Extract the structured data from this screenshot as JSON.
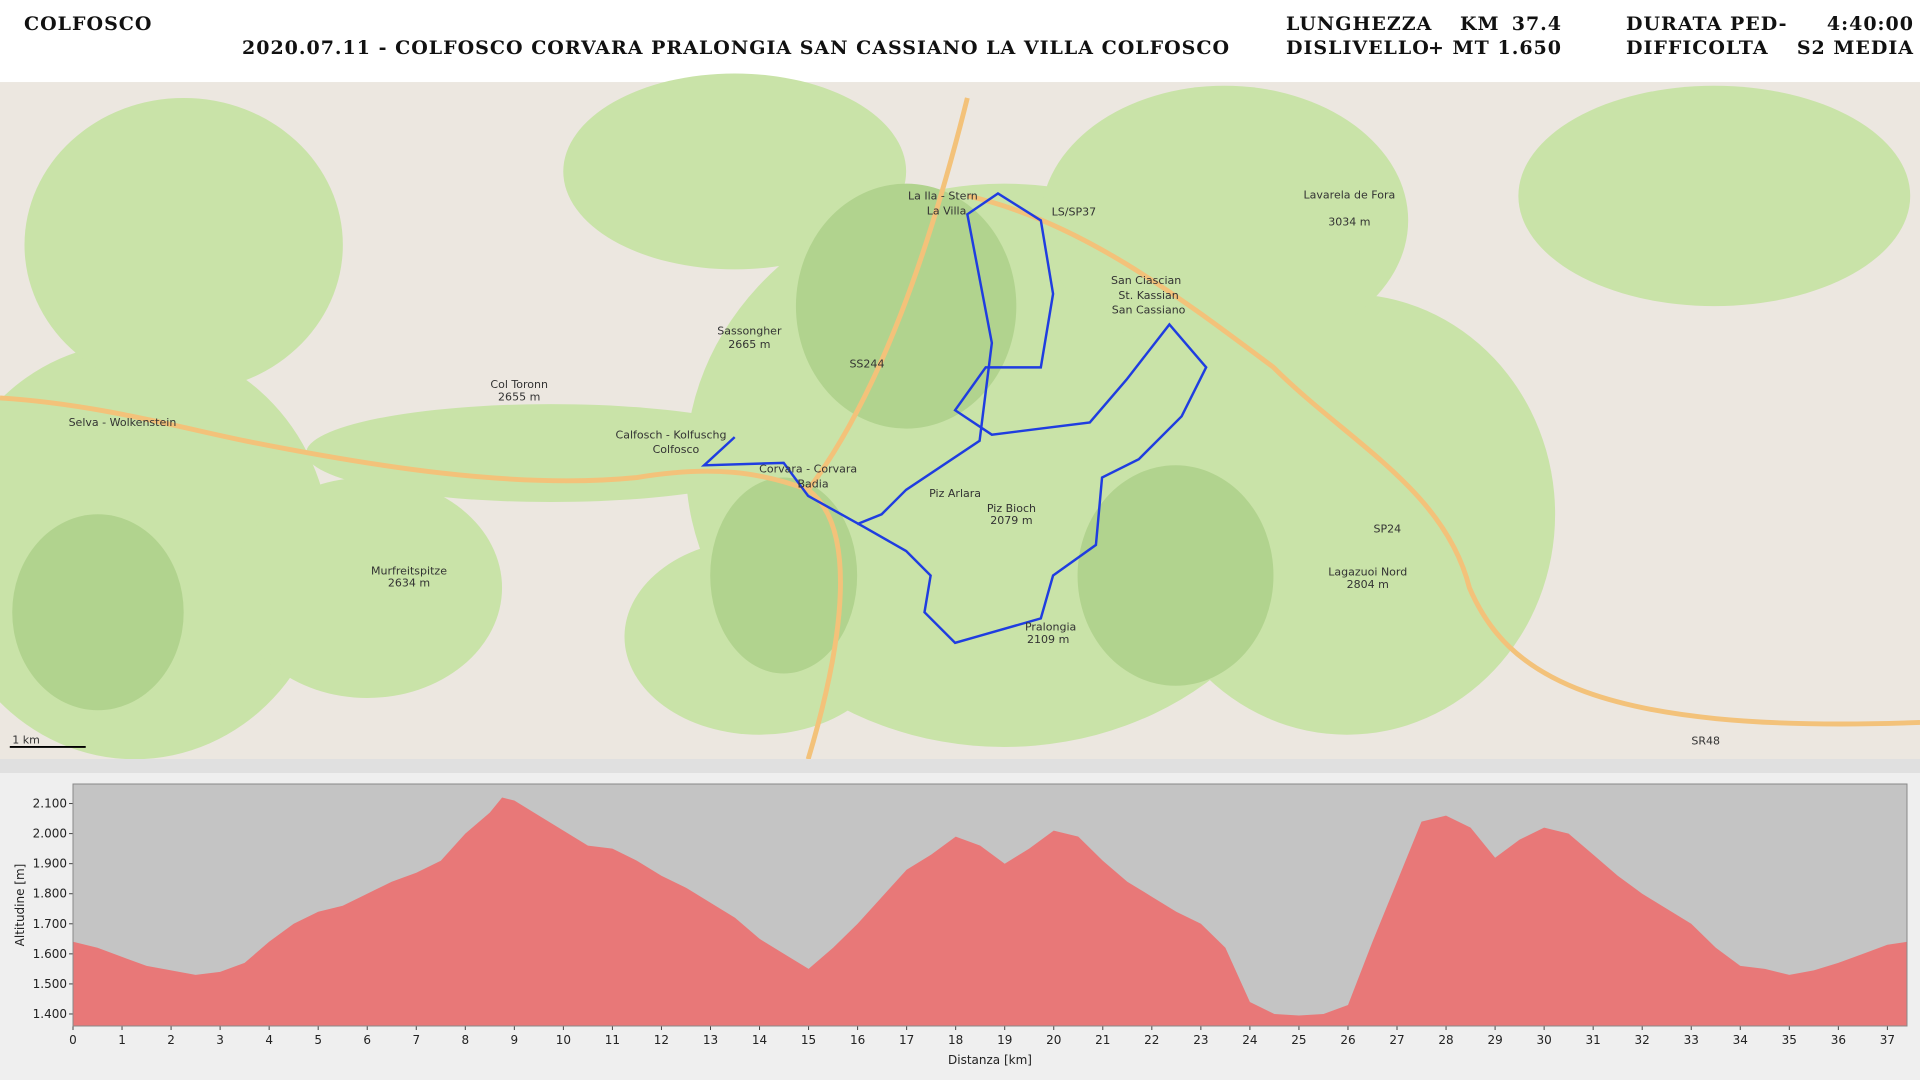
{
  "header": {
    "title": "COLFOSCO",
    "subtitle": "2020.07.11 - COLFOSCO CORVARA PRALONGIA SAN CASSIANO LA VILLA COLFOSCO",
    "stats": [
      {
        "label": "LUNGHEZZA",
        "unit": "KM",
        "value": "37.4"
      },
      {
        "label": "DISLIVELLO",
        "unit": "+ MT",
        "value": "1.650"
      },
      {
        "label": "DURATA PED-",
        "value": "4:40:00"
      },
      {
        "label": "DIFFICOLTA",
        "value": "S2 MEDIA"
      }
    ]
  },
  "map": {
    "scale": "1 km",
    "labels": [
      "Selva - Wolkenstein",
      "Calfosch - Kolfuschg",
      "Colfosco",
      "Corvara - Corvara",
      "Badia",
      "La Ila - Stern",
      "La Villa",
      "San Ciascian",
      "St. Kassian",
      "San Cassiano",
      "Piz Arlara",
      "Piz Bioch",
      "2079 m",
      "Pralongia",
      "2109 m",
      "Sassongher",
      "2665 m",
      "SS244",
      "LS/SP37",
      "SP24",
      "SR48",
      "Lavarela de Fora",
      "3034 m",
      "Col Toronn",
      "2655 m",
      "Murfreitspitze",
      "2634 m",
      "Lagazuoi Nord",
      "2804 m"
    ]
  },
  "chart_data": {
    "type": "area",
    "x_label": "Distanza [km]",
    "y_label": "Altitudine [m]",
    "color": "#e87878",
    "background": "#c4c4c4",
    "x": [
      0,
      0.5,
      1,
      1.5,
      2,
      2.5,
      3,
      3.5,
      4,
      4.5,
      5,
      5.5,
      6,
      6.5,
      7,
      7.5,
      8,
      8.5,
      8.75,
      9,
      9.5,
      10,
      10.5,
      11,
      11.5,
      12,
      12.5,
      13,
      13.5,
      14,
      14.5,
      15,
      15.5,
      16,
      16.5,
      17,
      17.5,
      18,
      18.5,
      19,
      19.5,
      20,
      20.5,
      21,
      21.5,
      22,
      22.5,
      23,
      23.5,
      24,
      24.5,
      25,
      25.5,
      26,
      26.5,
      27,
      27.5,
      28,
      28.5,
      29,
      29.5,
      30,
      30.5,
      31,
      31.5,
      32,
      32.5,
      33,
      33.5,
      34,
      34.5,
      35,
      35.5,
      36,
      36.5,
      37,
      37.4
    ],
    "values": [
      1640,
      1620,
      1590,
      1560,
      1545,
      1530,
      1540,
      1570,
      1640,
      1700,
      1740,
      1760,
      1800,
      1840,
      1870,
      1910,
      2000,
      2070,
      2120,
      2110,
      2060,
      2010,
      1960,
      1950,
      1910,
      1860,
      1820,
      1770,
      1720,
      1650,
      1600,
      1550,
      1620,
      1700,
      1790,
      1880,
      1930,
      1990,
      1960,
      1900,
      1950,
      2010,
      1990,
      1910,
      1840,
      1790,
      1740,
      1700,
      1620,
      1440,
      1400,
      1395,
      1400,
      1430,
      1640,
      1840,
      2040,
      2060,
      2020,
      1920,
      1980,
      2020,
      2000,
      1930,
      1860,
      1800,
      1750,
      1700,
      1620,
      1560,
      1550,
      1530,
      1545,
      1570,
      1600,
      1630,
      1640
    ],
    "xlim": [
      0,
      37.4
    ],
    "ylim": [
      1360,
      2165
    ],
    "xticks": [
      0,
      1,
      2,
      3,
      4,
      5,
      6,
      7,
      8,
      9,
      10,
      11,
      12,
      13,
      14,
      15,
      16,
      17,
      18,
      19,
      20,
      21,
      22,
      23,
      24,
      25,
      26,
      27,
      28,
      29,
      30,
      31,
      32,
      33,
      34,
      35,
      36,
      37
    ],
    "yticks": [
      {
        "value": 1400,
        "label": "1.400"
      },
      {
        "value": 1500,
        "label": "1.500"
      },
      {
        "value": 1600,
        "label": "1.600"
      },
      {
        "value": 1700,
        "label": "1.700"
      },
      {
        "value": 1800,
        "label": "1.800"
      },
      {
        "value": 1900,
        "label": "1.900"
      },
      {
        "value": 2000,
        "label": "2.000"
      },
      {
        "value": 2100,
        "label": "2.100"
      }
    ]
  }
}
